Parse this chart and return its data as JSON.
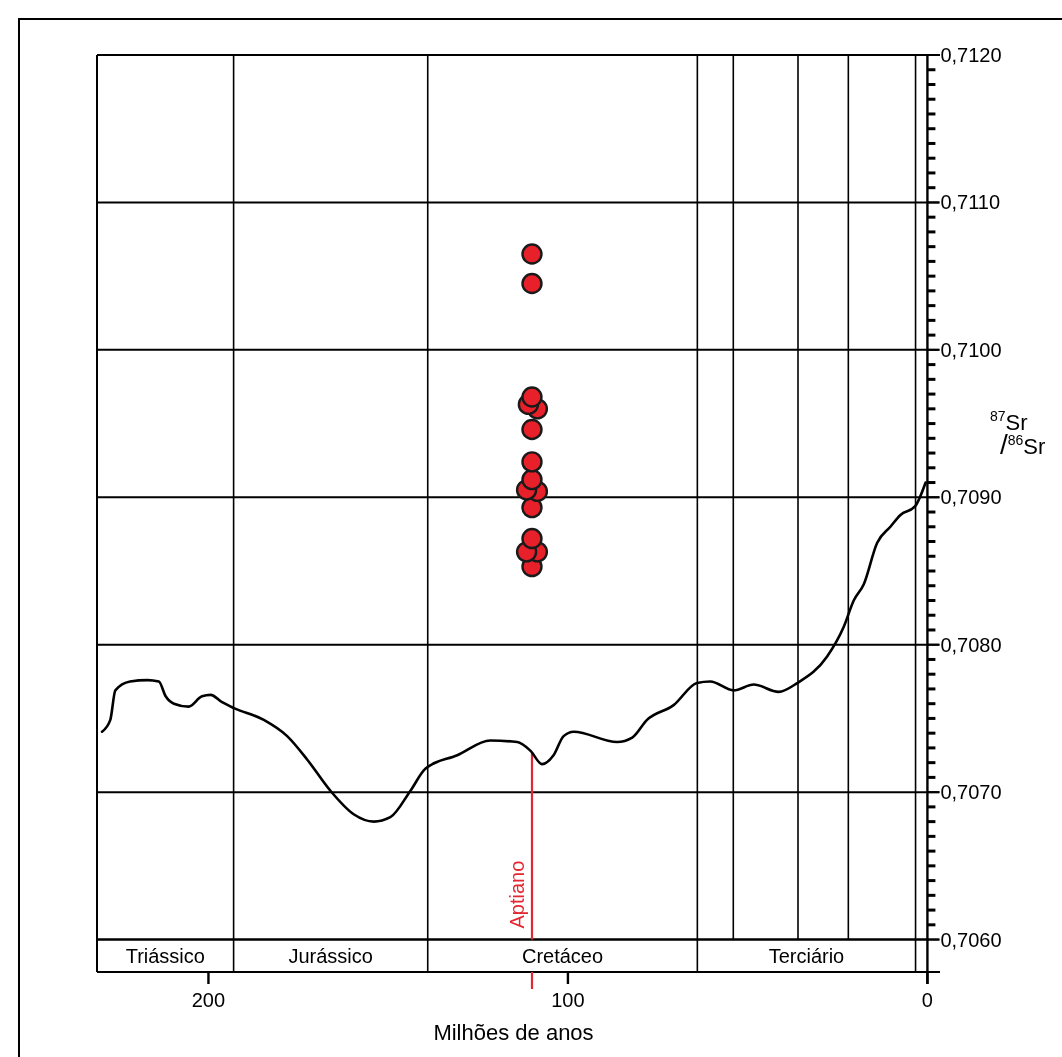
{
  "chart_data": {
    "type": "scatter",
    "xlabel": "Milhões de anos",
    "ylabel": "$^{87}$Sr/$^{86}$Sr",
    "xlim": [
      231,
      -3.5
    ],
    "xticks": [
      200,
      100,
      0
    ],
    "ylim": [
      0.70578,
      0.712
    ],
    "yticks": [
      {
        "value": 0.706,
        "label": "0,7060"
      },
      {
        "value": 0.7061,
        "label": null
      },
      {
        "value": 0.7062,
        "label": null
      },
      {
        "value": 0.7063,
        "label": null
      },
      {
        "value": 0.7064,
        "label": null
      },
      {
        "value": 0.7065,
        "label": null
      },
      {
        "value": 0.7066,
        "label": null
      },
      {
        "value": 0.7067,
        "label": null
      },
      {
        "value": 0.7068,
        "label": null
      },
      {
        "value": 0.7069,
        "label": null
      },
      {
        "value": 0.707,
        "label": "0,7070"
      },
      {
        "value": 0.7071,
        "label": null
      },
      {
        "value": 0.7072,
        "label": null
      },
      {
        "value": 0.7073,
        "label": null
      },
      {
        "value": 0.7074,
        "label": null
      },
      {
        "value": 0.7075,
        "label": null
      },
      {
        "value": 0.7076,
        "label": null
      },
      {
        "value": 0.7077,
        "label": null
      },
      {
        "value": 0.7078,
        "label": null
      },
      {
        "value": 0.7079,
        "label": null
      },
      {
        "value": 0.708,
        "label": "0,7080"
      },
      {
        "value": 0.7081,
        "label": null
      },
      {
        "value": 0.7082,
        "label": null
      },
      {
        "value": 0.7083,
        "label": null
      },
      {
        "value": 0.7084,
        "label": null
      },
      {
        "value": 0.7085,
        "label": null
      },
      {
        "value": 0.7086,
        "label": null
      },
      {
        "value": 0.7087,
        "label": null
      },
      {
        "value": 0.7088,
        "label": null
      },
      {
        "value": 0.7089,
        "label": null
      },
      {
        "value": 0.709,
        "label": "0,7090"
      },
      {
        "value": 0.7091,
        "label": null
      },
      {
        "value": 0.7092,
        "label": null
      },
      {
        "value": 0.7093,
        "label": null
      },
      {
        "value": 0.7094,
        "label": null
      },
      {
        "value": 0.7095,
        "label": null
      },
      {
        "value": 0.7096,
        "label": null
      },
      {
        "value": 0.7097,
        "label": null
      },
      {
        "value": 0.7098,
        "label": null
      },
      {
        "value": 0.7099,
        "label": null
      },
      {
        "value": 0.71,
        "label": "0,7100"
      },
      {
        "value": 0.7101,
        "label": null
      },
      {
        "value": 0.7102,
        "label": null
      },
      {
        "value": 0.7103,
        "label": null
      },
      {
        "value": 0.7104,
        "label": null
      },
      {
        "value": 0.7105,
        "label": null
      },
      {
        "value": 0.7106,
        "label": null
      },
      {
        "value": 0.7107,
        "label": null
      },
      {
        "value": 0.7108,
        "label": null
      },
      {
        "value": 0.7109,
        "label": null
      },
      {
        "value": 0.711,
        "label": "0,7110"
      },
      {
        "value": 0.7111,
        "label": null
      },
      {
        "value": 0.7112,
        "label": null
      },
      {
        "value": 0.7113,
        "label": null
      },
      {
        "value": 0.7114,
        "label": null
      },
      {
        "value": 0.7115,
        "label": null
      },
      {
        "value": 0.7116,
        "label": null
      },
      {
        "value": 0.7117,
        "label": null
      },
      {
        "value": 0.7118,
        "label": null
      },
      {
        "value": 0.7119,
        "label": null
      },
      {
        "value": 0.712,
        "label": "0,7120"
      }
    ],
    "grid": "y",
    "series": [
      {
        "type": "line",
        "color": "#000000",
        "x": [
          229.6,
          227.3,
          225.9,
          221.8,
          217,
          213.8,
          211.9,
          209.6,
          205.5,
          201.8,
          199.4,
          196.2,
          192.9,
          184.6,
          178.1,
          172.5,
          166.1,
          159.6,
          154,
          149.4,
          143.8,
          139.6,
          130.8,
          121.6,
          114.1,
          110.4,
          107.2,
          104,
          101.2,
          98.4,
          86.3,
          82.1,
          78,
          70.6,
          64.1,
          60.4,
          53.9,
          48.3,
          41.4,
          36.2,
          27.9,
          23.3,
          20.5,
          17.7,
          14,
          10.3,
          7.5,
          3.4,
          0.5
        ],
        "values": [
          0.70741,
          0.70749,
          0.70769,
          0.70775,
          0.70776,
          0.70775,
          0.70765,
          0.7076,
          0.70758,
          0.70765,
          0.70766,
          0.70761,
          0.70757,
          0.70749,
          0.70738,
          0.70722,
          0.70701,
          0.70685,
          0.7068,
          0.70683,
          0.70701,
          0.70716,
          0.70725,
          0.70735,
          0.70734,
          0.70728,
          0.70719,
          0.70725,
          0.70738,
          0.70741,
          0.70734,
          0.70737,
          0.70749,
          0.70759,
          0.70774,
          0.70775,
          0.70769,
          0.70773,
          0.70768,
          0.70774,
          0.70792,
          0.70812,
          0.7083,
          0.70841,
          0.70869,
          0.7088,
          0.70888,
          0.70894,
          0.7091
        ]
      },
      {
        "marker": "circle",
        "color": "#e8202a",
        "x": [
          110,
          110,
          110,
          111,
          108.5,
          110,
          110,
          110,
          111.5,
          108.5,
          110,
          110,
          111.5,
          108.5,
          110
        ],
        "values": [
          0.71065,
          0.71045,
          0.70968,
          0.70963,
          0.7096,
          0.70946,
          0.70924,
          0.70912,
          0.70905,
          0.70904,
          0.70893,
          0.70872,
          0.70863,
          0.70863,
          0.70853
        ]
      }
    ],
    "annotations": [
      "Triássico",
      "Jurássico",
      "Cretáceo",
      "Terciário"
    ],
    "ref_lines": [
      {
        "axis": "x",
        "value": 193,
        "label": null
      },
      {
        "axis": "x",
        "value": 139,
        "label": null
      },
      {
        "axis": "x",
        "value": 64,
        "label": null
      },
      {
        "axis": "x",
        "value": 3.3,
        "label": null
      },
      {
        "axis": "x",
        "value": 54,
        "label": null
      },
      {
        "axis": "x",
        "value": 36,
        "label": null
      },
      {
        "axis": "x",
        "value": 22,
        "label": null
      },
      {
        "axis": "x",
        "value": 110,
        "label": "Aptiano",
        "color": "#e32631"
      }
    ]
  }
}
